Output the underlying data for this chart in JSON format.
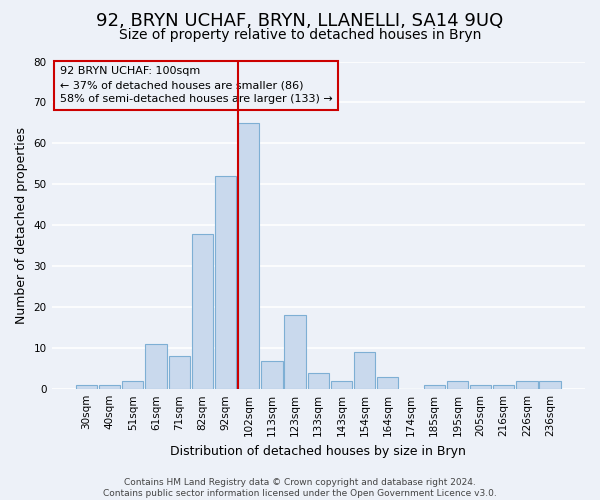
{
  "title": "92, BRYN UCHAF, BRYN, LLANELLI, SA14 9UQ",
  "subtitle": "Size of property relative to detached houses in Bryn",
  "xlabel": "Distribution of detached houses by size in Bryn",
  "ylabel": "Number of detached properties",
  "bar_labels": [
    "30sqm",
    "40sqm",
    "51sqm",
    "61sqm",
    "71sqm",
    "82sqm",
    "92sqm",
    "102sqm",
    "113sqm",
    "123sqm",
    "133sqm",
    "143sqm",
    "154sqm",
    "164sqm",
    "174sqm",
    "185sqm",
    "195sqm",
    "205sqm",
    "216sqm",
    "226sqm",
    "236sqm"
  ],
  "bar_values": [
    1,
    1,
    2,
    11,
    8,
    38,
    52,
    65,
    7,
    18,
    4,
    2,
    9,
    3,
    0,
    1,
    2,
    1,
    1,
    2,
    2
  ],
  "bar_color": "#c9d9ed",
  "bar_edge_color": "#7eafd4",
  "vline_index": 7,
  "vline_color": "#cc0000",
  "ylim": [
    0,
    80
  ],
  "yticks": [
    0,
    10,
    20,
    30,
    40,
    50,
    60,
    70,
    80
  ],
  "annotation_title": "92 BRYN UCHAF: 100sqm",
  "annotation_line1": "← 37% of detached houses are smaller (86)",
  "annotation_line2": "58% of semi-detached houses are larger (133) →",
  "annotation_box_edgecolor": "#cc0000",
  "footer1": "Contains HM Land Registry data © Crown copyright and database right 2024.",
  "footer2": "Contains public sector information licensed under the Open Government Licence v3.0.",
  "background_color": "#edf1f8",
  "grid_color": "#ffffff",
  "title_fontsize": 13,
  "subtitle_fontsize": 10,
  "axis_label_fontsize": 9,
  "tick_fontsize": 7.5,
  "footer_fontsize": 6.5
}
